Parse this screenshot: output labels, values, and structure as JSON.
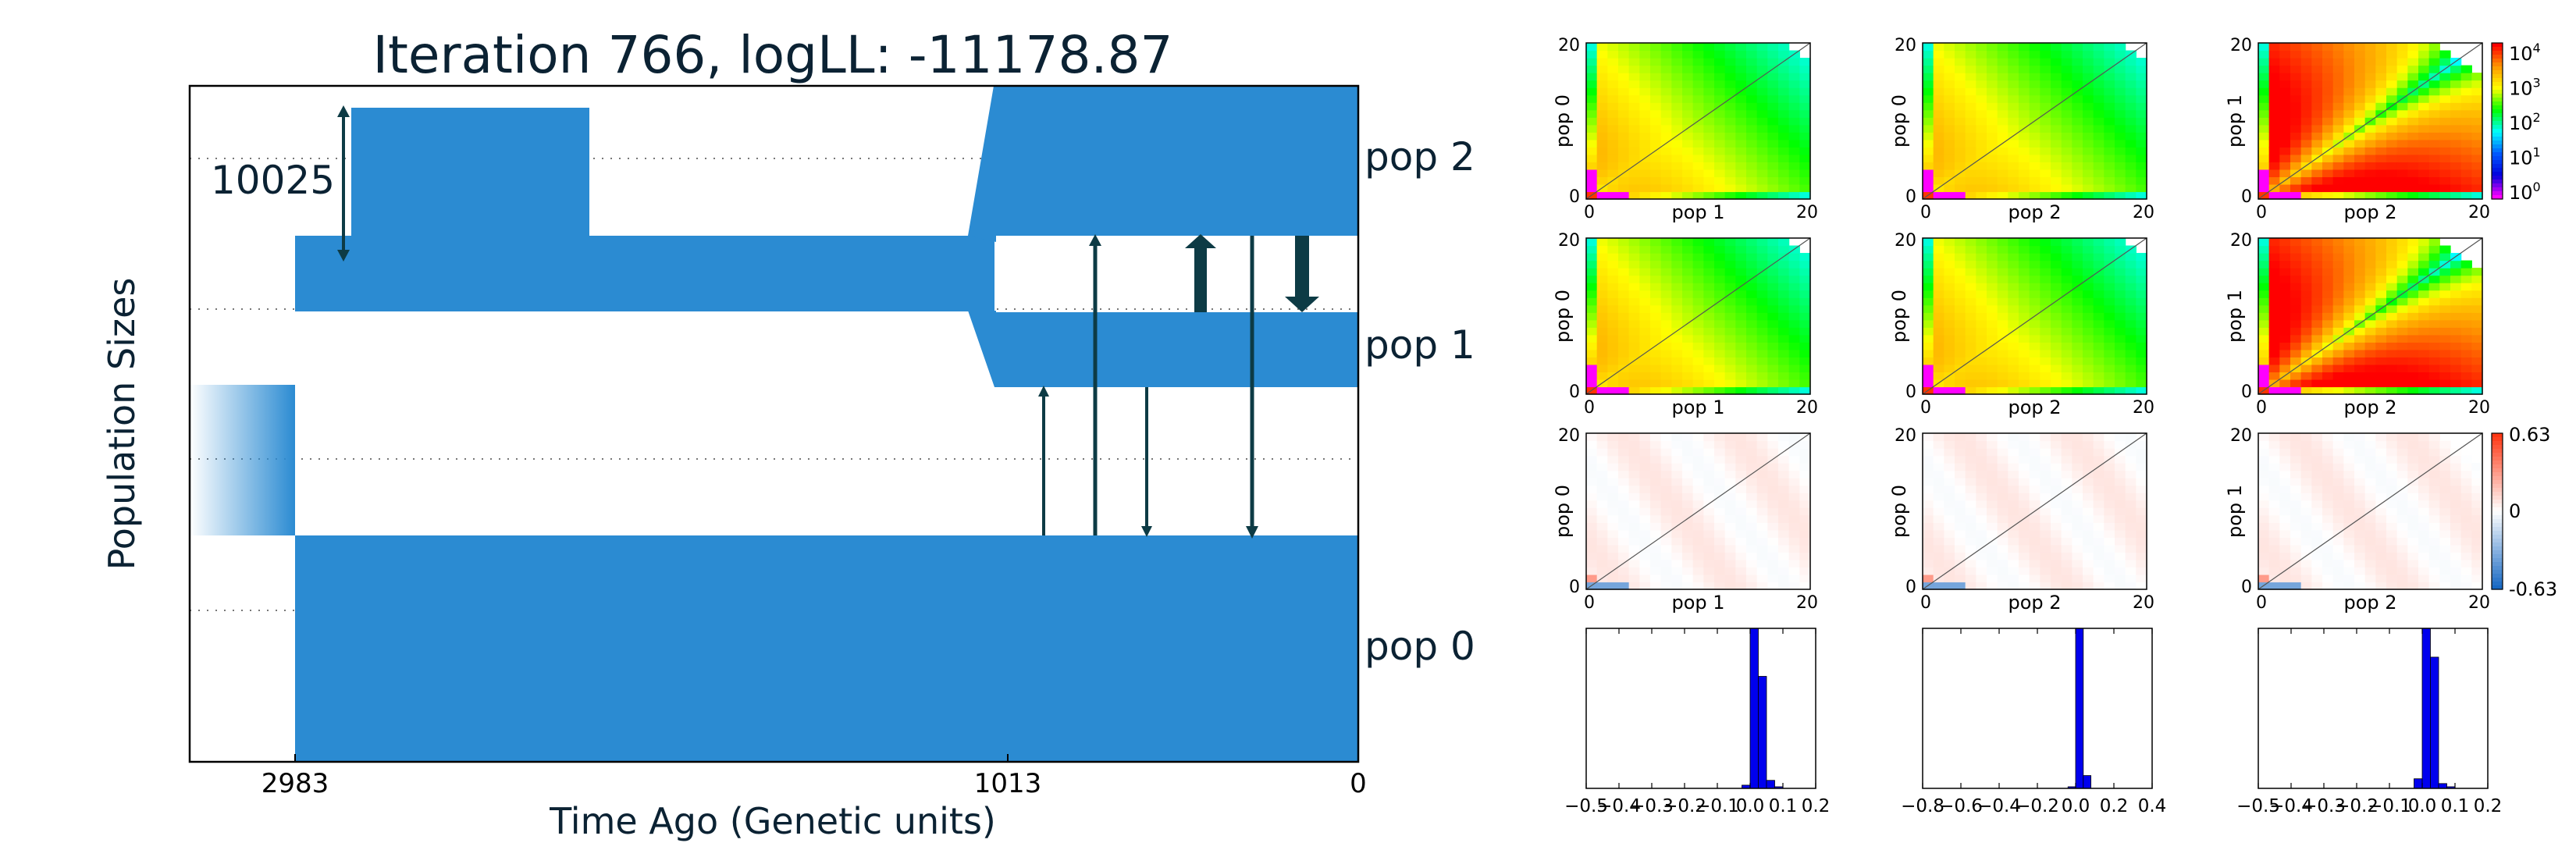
{
  "chart_data": [
    {
      "type": "population-demography",
      "title": "Iteration 766, logLL:  -11178.87",
      "xlabel": "Time Ago (Genetic units)",
      "ylabel": "Population Sizes",
      "x_ticks": [
        "2983",
        "1013",
        "0"
      ],
      "scale_label": "10025",
      "populations": [
        "pop 0",
        "pop 1",
        "pop 2"
      ],
      "color": "#2b8bd2",
      "migration_arrow_color": "#0d3b45"
    },
    {
      "type": "heatmap-grid",
      "rows": [
        {
          "kind": "sfs",
          "panels": [
            {
              "ylabel": "pop 0",
              "xlabel": "pop 1",
              "ticks": [
                "0",
                "20"
              ]
            },
            {
              "ylabel": "pop 0",
              "xlabel": "pop 2",
              "ticks": [
                "0",
                "20"
              ]
            },
            {
              "ylabel": "pop 1",
              "xlabel": "pop 2",
              "ticks": [
                "0",
                "20"
              ]
            }
          ],
          "colorbar": [
            "10^4",
            "10^3",
            "10^2",
            "10^1",
            "10^0"
          ]
        },
        {
          "kind": "sfs",
          "panels": [
            {
              "ylabel": "pop 0",
              "xlabel": "pop 1",
              "ticks": [
                "0",
                "20"
              ]
            },
            {
              "ylabel": "pop 0",
              "xlabel": "pop 2",
              "ticks": [
                "0",
                "20"
              ]
            },
            {
              "ylabel": "pop 1",
              "xlabel": "pop 2",
              "ticks": [
                "0",
                "20"
              ]
            }
          ]
        },
        {
          "kind": "residual",
          "panels": [
            {
              "ylabel": "pop 0",
              "xlabel": "pop 1",
              "ticks": [
                "0",
                "20"
              ]
            },
            {
              "ylabel": "pop 0",
              "xlabel": "pop 2",
              "ticks": [
                "0",
                "20"
              ]
            },
            {
              "ylabel": "pop 1",
              "xlabel": "pop 2",
              "ticks": [
                "0",
                "20"
              ]
            }
          ],
          "colorbar": [
            "0.63",
            "0",
            "-0.63"
          ]
        }
      ]
    },
    {
      "type": "bar",
      "subtype": "histogram",
      "panels": [
        {
          "x_ticks": [
            "−0.5",
            "−0.4",
            "−0.3",
            "−0.2",
            "−0.1",
            "0.0",
            "0.1",
            "0.2"
          ],
          "xlim": [
            -0.5,
            0.2
          ],
          "bin_width": 0.025,
          "bins": [
            {
              "x": -0.0125,
              "h": 0.02
            },
            {
              "x": 0.0125,
              "h": 1.0
            },
            {
              "x": 0.0375,
              "h": 0.7
            },
            {
              "x": 0.0625,
              "h": 0.05
            },
            {
              "x": 0.0875,
              "h": 0.01
            }
          ]
        },
        {
          "x_ticks": [
            "−0.8",
            "−0.6",
            "−0.4",
            "−0.2",
            "0.0",
            "0.2",
            "0.4"
          ],
          "xlim": [
            -0.8,
            0.4
          ],
          "bin_width": 0.04,
          "bins": [
            {
              "x": -0.02,
              "h": 0.01
            },
            {
              "x": 0.02,
              "h": 1.0
            },
            {
              "x": 0.06,
              "h": 0.08
            }
          ]
        },
        {
          "x_ticks": [
            "−0.5",
            "−0.4",
            "−0.3",
            "−0.2",
            "−0.1",
            "0.0",
            "0.1",
            "0.2"
          ],
          "xlim": [
            -0.5,
            0.2
          ],
          "bin_width": 0.025,
          "bins": [
            {
              "x": -0.0125,
              "h": 0.06
            },
            {
              "x": 0.0125,
              "h": 1.0
            },
            {
              "x": 0.0375,
              "h": 0.82
            },
            {
              "x": 0.0625,
              "h": 0.03
            },
            {
              "x": 0.0875,
              "h": 0.01
            }
          ]
        }
      ]
    }
  ]
}
